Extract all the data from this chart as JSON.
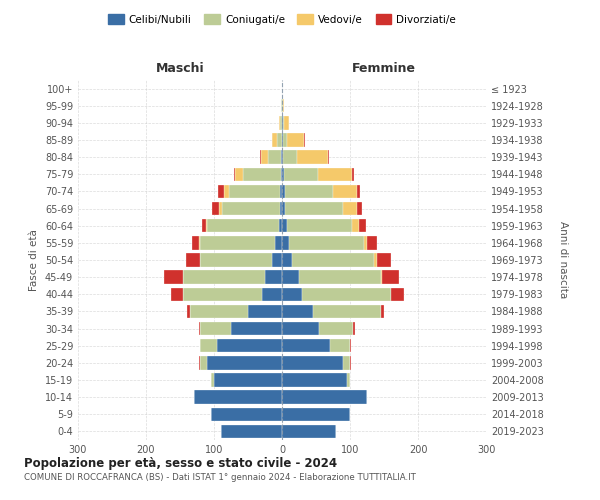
{
  "age_groups": [
    "0-4",
    "5-9",
    "10-14",
    "15-19",
    "20-24",
    "25-29",
    "30-34",
    "35-39",
    "40-44",
    "45-49",
    "50-54",
    "55-59",
    "60-64",
    "65-69",
    "70-74",
    "75-79",
    "80-84",
    "85-89",
    "90-94",
    "95-99",
    "100+"
  ],
  "birth_years": [
    "2019-2023",
    "2014-2018",
    "2009-2013",
    "2004-2008",
    "1999-2003",
    "1994-1998",
    "1989-1993",
    "1984-1988",
    "1979-1983",
    "1974-1978",
    "1969-1973",
    "1964-1968",
    "1959-1963",
    "1954-1958",
    "1949-1953",
    "1944-1948",
    "1939-1943",
    "1934-1938",
    "1929-1933",
    "1924-1928",
    "≤ 1923"
  ],
  "colors": {
    "celibi": "#3A6EA5",
    "coniugati": "#BDCC96",
    "vedovi": "#F5C96A",
    "divorziati": "#D0312D"
  },
  "males": {
    "celibi": [
      90,
      105,
      130,
      100,
      110,
      95,
      75,
      50,
      30,
      25,
      15,
      10,
      5,
      3,
      3,
      2,
      1,
      0,
      0,
      0,
      0
    ],
    "coniugati": [
      0,
      0,
      0,
      5,
      10,
      25,
      45,
      85,
      115,
      120,
      105,
      110,
      105,
      85,
      75,
      55,
      20,
      8,
      3,
      1,
      0
    ],
    "vedovi": [
      0,
      0,
      0,
      0,
      0,
      0,
      0,
      0,
      0,
      1,
      1,
      2,
      2,
      5,
      8,
      12,
      10,
      6,
      2,
      0,
      0
    ],
    "divorziati": [
      0,
      0,
      0,
      0,
      2,
      1,
      2,
      5,
      18,
      28,
      20,
      10,
      5,
      10,
      8,
      2,
      2,
      0,
      0,
      0,
      0
    ]
  },
  "females": {
    "nubili": [
      80,
      100,
      125,
      95,
      90,
      70,
      55,
      45,
      30,
      25,
      15,
      10,
      8,
      5,
      5,
      3,
      2,
      2,
      1,
      0,
      0
    ],
    "coniugate": [
      0,
      0,
      0,
      5,
      10,
      30,
      50,
      100,
      130,
      120,
      120,
      110,
      95,
      85,
      70,
      50,
      20,
      5,
      2,
      1,
      0
    ],
    "vedove": [
      0,
      0,
      0,
      0,
      0,
      0,
      0,
      0,
      1,
      2,
      4,
      5,
      10,
      20,
      35,
      50,
      45,
      25,
      8,
      2,
      0
    ],
    "divorziate": [
      0,
      0,
      0,
      0,
      2,
      2,
      2,
      5,
      18,
      25,
      22,
      15,
      10,
      8,
      5,
      3,
      2,
      2,
      0,
      0,
      0
    ]
  },
  "title": "Popolazione per età, sesso e stato civile - 2024",
  "subtitle": "COMUNE DI ROCCAFRANCA (BS) - Dati ISTAT 1° gennaio 2024 - Elaborazione TUTTITALIA.IT",
  "xlabel_left": "Maschi",
  "xlabel_right": "Femmine",
  "ylabel_left": "Fasce di età",
  "ylabel_right": "Anni di nascita",
  "xlim": 300,
  "legend_labels": [
    "Celibi/Nubili",
    "Coniugati/e",
    "Vedovi/e",
    "Divorziati/e"
  ],
  "bg_color": "#FFFFFF",
  "grid_color": "#CCCCCC"
}
